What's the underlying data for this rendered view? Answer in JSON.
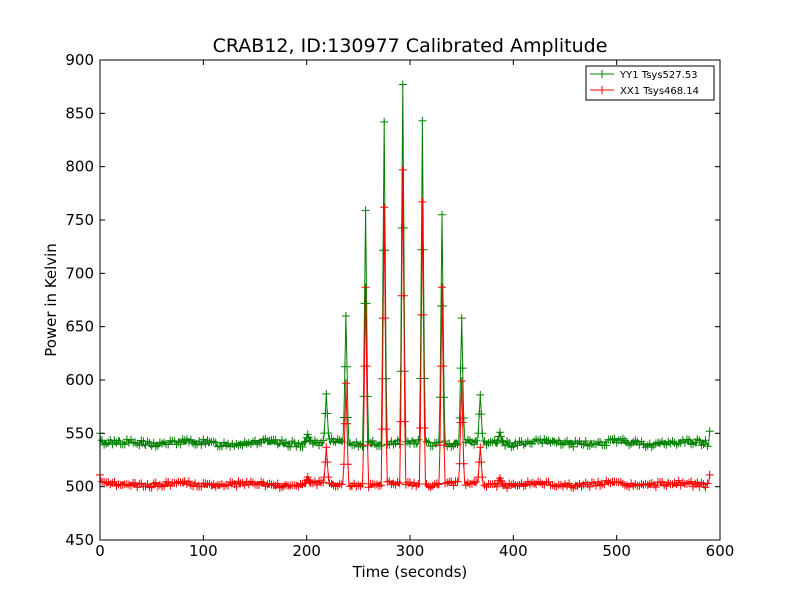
{
  "chart_data": {
    "type": "line",
    "title": "CRAB12, ID:130977 Calibrated Amplitude",
    "xlabel": "Time (seconds)",
    "ylabel": "Power in Kelvin",
    "xlim": [
      0,
      600
    ],
    "ylim": [
      450,
      900
    ],
    "xticks": [
      0,
      100,
      200,
      300,
      400,
      500,
      600
    ],
    "yticks": [
      450,
      500,
      550,
      600,
      650,
      700,
      750,
      800,
      850,
      900
    ],
    "xtick_labels": [
      "0",
      "100",
      "200",
      "300",
      "400",
      "500",
      "600"
    ],
    "ytick_labels": [
      "450",
      "500",
      "550",
      "600",
      "650",
      "700",
      "750",
      "800",
      "850",
      "900"
    ],
    "grid": false,
    "legend_position": "upper-right",
    "series": [
      {
        "name": "YY1 Tsys527.53",
        "color": "#008000",
        "marker": "+",
        "baseline": 541,
        "baseline_noise": 3,
        "endpoint_values": [
          [
            0,
            550
          ],
          [
            590,
            552
          ]
        ],
        "peaks": [
          [
            201,
            549
          ],
          [
            219,
            587
          ],
          [
            238,
            660
          ],
          [
            257,
            759
          ],
          [
            275,
            842
          ],
          [
            293,
            877
          ],
          [
            312,
            843
          ],
          [
            331,
            755
          ],
          [
            350,
            658
          ],
          [
            368,
            586
          ],
          [
            387,
            551
          ]
        ]
      },
      {
        "name": "XX1 Tsys468.14",
        "color": "#ff0000",
        "marker": "+",
        "baseline": 502,
        "baseline_noise": 2.5,
        "endpoint_values": [
          [
            0,
            511
          ],
          [
            590,
            511
          ]
        ],
        "peaks": [
          [
            201,
            509
          ],
          [
            219,
            537
          ],
          [
            238,
            597
          ],
          [
            257,
            687
          ],
          [
            275,
            762
          ],
          [
            293,
            797
          ],
          [
            312,
            767
          ],
          [
            331,
            687
          ],
          [
            350,
            599
          ],
          [
            368,
            537
          ],
          [
            387,
            508
          ]
        ]
      }
    ]
  }
}
